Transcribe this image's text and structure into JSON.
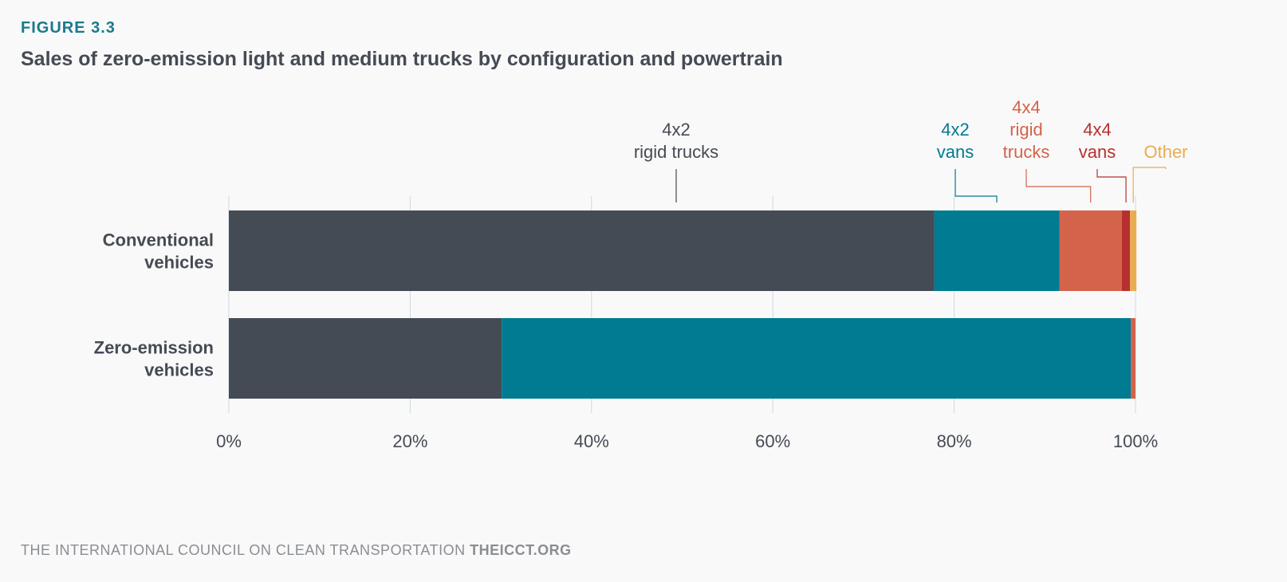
{
  "figure": {
    "label": "FIGURE 3.3",
    "title": "Sales of zero-emission light and medium trucks by configuration and powertrain"
  },
  "footer": {
    "org": "THE INTERNATIONAL COUNCIL ON CLEAN TRANSPORTATION",
    "site": "THEICCT.ORG"
  },
  "colors": {
    "4x2 rigid trucks": "#454b54",
    "4x2 vans": "#007b91",
    "4x4 rigid trucks": "#d4634b",
    "4x4 vans": "#b8302d",
    "Other": "#e8ad4f",
    "grid": "#c9dbe5",
    "text": "#454a54"
  },
  "chart_data": {
    "type": "bar",
    "orientation": "horizontal",
    "stacked": true,
    "categories": [
      [
        "Conventional",
        "vehicles"
      ],
      [
        "Zero-emission",
        "vehicles"
      ]
    ],
    "series": [
      {
        "name": "4x2 rigid trucks",
        "label_lines": [
          "4x2",
          "rigid trucks"
        ],
        "values": [
          77.8,
          30.1
        ]
      },
      {
        "name": "4x2 vans",
        "label_lines": [
          "4x2",
          "vans"
        ],
        "values": [
          13.8,
          69.4
        ]
      },
      {
        "name": "4x4 rigid trucks",
        "label_lines": [
          "4x4",
          "rigid",
          "trucks"
        ],
        "values": [
          6.9,
          0.5
        ]
      },
      {
        "name": "4x4 vans",
        "label_lines": [
          "4x4",
          "vans"
        ],
        "values": [
          0.9,
          0.0
        ]
      },
      {
        "name": "Other",
        "label_lines": [
          "Other"
        ],
        "values": [
          0.7,
          0.0
        ]
      }
    ],
    "xlim": [
      0,
      100
    ],
    "xticks": [
      0,
      20,
      40,
      60,
      80,
      100
    ],
    "xtick_labels": [
      "0%",
      "20%",
      "40%",
      "60%",
      "80%",
      "100%"
    ],
    "grid": true,
    "legend": "callout labels above top bar"
  }
}
